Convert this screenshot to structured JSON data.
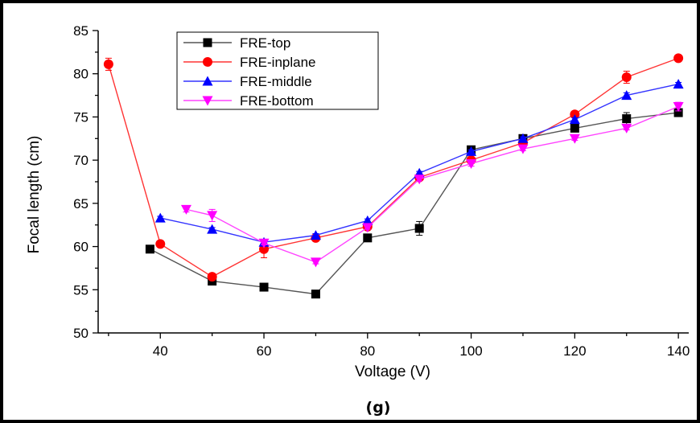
{
  "chart_data": {
    "type": "line",
    "title": "",
    "xlabel": "Voltage (V)",
    "ylabel": "Focal length (cm)",
    "xlim": [
      28,
      142
    ],
    "ylim": [
      50,
      85
    ],
    "xticks": [
      40,
      60,
      80,
      100,
      120,
      140
    ],
    "yticks": [
      50,
      55,
      60,
      65,
      70,
      75,
      80,
      85
    ],
    "grid": false,
    "legend_position": "top-left",
    "panel_label": "(g)",
    "series": [
      {
        "name": "FRE-top",
        "color": "#000000",
        "marker": "square",
        "line_color": "#555555",
        "x": [
          38,
          50,
          60,
          70,
          80,
          90,
          100,
          110,
          120,
          130,
          140
        ],
        "y": [
          59.7,
          56.0,
          55.3,
          54.5,
          61.0,
          62.1,
          71.2,
          72.5,
          73.7,
          74.8,
          75.5
        ],
        "err": [
          0.2,
          0.3,
          0.2,
          0.3,
          0.3,
          0.8,
          0.3,
          0.2,
          0.2,
          0.7,
          0.3
        ]
      },
      {
        "name": "FRE-inplane",
        "color": "#ff0000",
        "marker": "circle",
        "line_color": "#ff3333",
        "x": [
          30,
          40,
          50,
          60,
          70,
          80,
          90,
          100,
          110,
          120,
          130,
          140
        ],
        "y": [
          81.1,
          60.3,
          56.5,
          59.7,
          61.0,
          62.3,
          68.0,
          70.0,
          72.0,
          75.3,
          79.6,
          81.8
        ],
        "err": [
          0.7,
          0.2,
          0.3,
          1.0,
          0.3,
          0.2,
          0.3,
          0.3,
          0.2,
          0.3,
          0.7,
          0.2
        ]
      },
      {
        "name": "FRE-middle",
        "color": "#0000ff",
        "marker": "triangle-up",
        "line_color": "#3333ff",
        "x": [
          40,
          50,
          60,
          70,
          80,
          90,
          100,
          110,
          120,
          130,
          140
        ],
        "y": [
          63.3,
          62.0,
          60.5,
          61.3,
          63.0,
          68.5,
          71.0,
          72.5,
          74.7,
          77.5,
          78.8
        ],
        "err": [
          0.2,
          0.2,
          0.2,
          0.2,
          0.2,
          0.2,
          0.2,
          0.2,
          0.2,
          0.3,
          0.2
        ]
      },
      {
        "name": "FRE-bottom",
        "color": "#ff00ff",
        "marker": "triangle-down",
        "line_color": "#ff44ff",
        "x": [
          45,
          50,
          60,
          70,
          80,
          90,
          100,
          110,
          120,
          130,
          140
        ],
        "y": [
          64.3,
          63.6,
          60.4,
          58.2,
          62.2,
          67.8,
          69.6,
          71.3,
          72.5,
          73.7,
          76.2
        ],
        "err": [
          0.3,
          0.7,
          0.2,
          0.2,
          0.2,
          0.2,
          0.3,
          0.2,
          0.2,
          0.2,
          0.5
        ]
      }
    ]
  }
}
